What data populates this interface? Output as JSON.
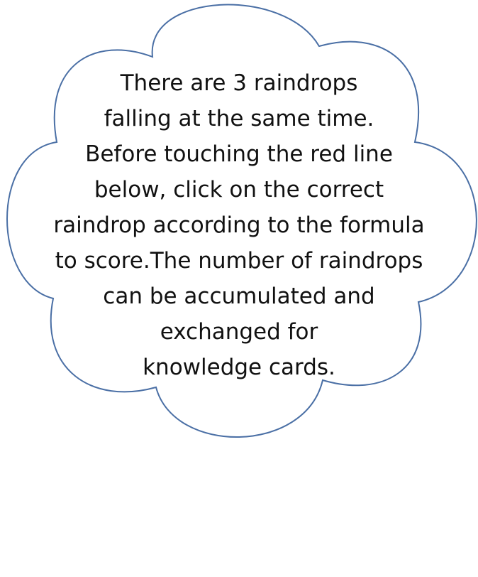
{
  "instructions": {
    "lines": [
      "There are 3 raindrops",
      "falling at the same time.",
      "Before touching the red line",
      "below, click on the correct",
      "raindrop according to the formula",
      "to score.The number of raindrops",
      "can be accumulated and",
      "exchanged for",
      "knowledge cards."
    ]
  },
  "colors": {
    "cloud_fill": "#ffffff",
    "cloud_outline": "#4a6fa5",
    "text": "#111111",
    "background": "#ffffff"
  }
}
